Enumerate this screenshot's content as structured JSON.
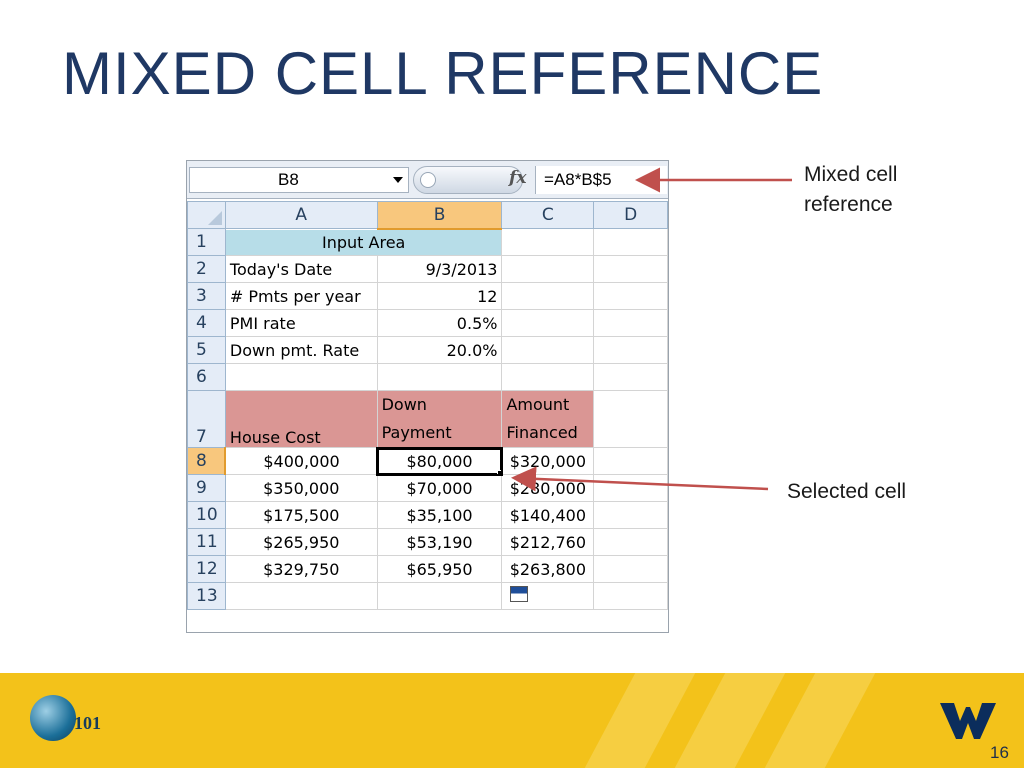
{
  "slide": {
    "title": "MIXED CELL REFERENCE",
    "page_number": "16"
  },
  "formula_bar": {
    "name_box": "B8",
    "formula": "=A8*B$5"
  },
  "sheet": {
    "columns": [
      "A",
      "B",
      "C",
      "D"
    ],
    "rows": {
      "r1": {
        "num": "1",
        "a": "Input Area"
      },
      "r2": {
        "num": "2",
        "a": "Today's Date",
        "b": "9/3/2013"
      },
      "r3": {
        "num": "3",
        "a": "# Pmts per year",
        "b": "12"
      },
      "r4": {
        "num": "4",
        "a": "PMI rate",
        "b": "0.5%"
      },
      "r5": {
        "num": "5",
        "a": "Down pmt. Rate",
        "b": "20.0%"
      },
      "r6": {
        "num": "6"
      },
      "r7": {
        "num": "7",
        "a": "House Cost",
        "b1": "Down",
        "b2": "Payment",
        "c1": "Amount",
        "c2": "Financed"
      },
      "r8": {
        "num": "8",
        "a": "$400,000",
        "b": "$80,000",
        "c": "$320,000"
      },
      "r9": {
        "num": "9",
        "a": "$350,000",
        "b": "$70,000",
        "c": "$280,000"
      },
      "r10": {
        "num": "10",
        "a": "$175,500",
        "b": "$35,100",
        "c": "$140,400"
      },
      "r11": {
        "num": "11",
        "a": "$265,950",
        "b": "$53,190",
        "c": "$212,760"
      },
      "r12": {
        "num": "12",
        "a": "$329,750",
        "b": "$65,950",
        "c": "$263,800"
      },
      "r13": {
        "num": "13"
      }
    },
    "selected_cell": "B8"
  },
  "callouts": {
    "mixed_line1": "Mixed cell",
    "mixed_line2": "reference",
    "selected": "Selected cell"
  },
  "footer": {
    "logo_text": "101",
    "colors": {
      "band": "#f3c21a",
      "title": "#1f3864",
      "arrow": "#c0504d"
    }
  }
}
